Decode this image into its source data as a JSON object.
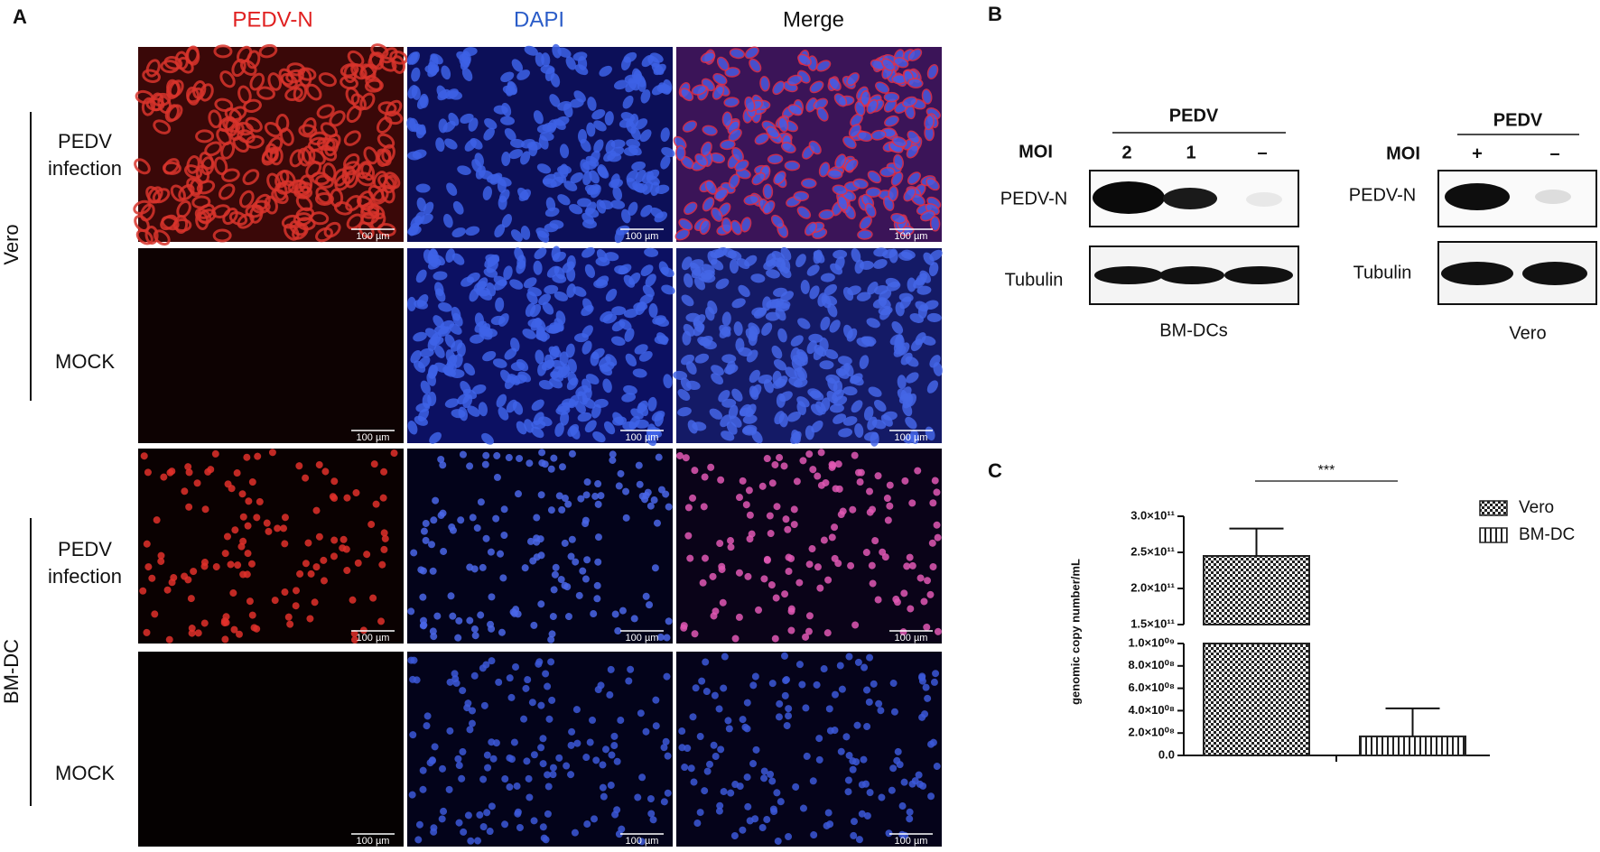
{
  "panel_a": {
    "label": "A",
    "columns": [
      "PEDV-N",
      "DAPI",
      "Merge"
    ],
    "groups": [
      {
        "name": "Vero",
        "rows": [
          [
            "PEDV",
            "infection"
          ],
          [
            "MOCK"
          ]
        ]
      },
      {
        "name": "BM-DC",
        "rows": [
          [
            "PEDV",
            "infection"
          ],
          [
            "MOCK"
          ]
        ]
      }
    ],
    "scale_bar": "100 µm"
  },
  "panel_b": {
    "label": "B",
    "blots": [
      {
        "header": "PEDV",
        "moi_label": "MOI",
        "lanes": [
          "2",
          "1",
          "–"
        ],
        "bands": [
          "PEDV-N",
          "Tubulin"
        ],
        "caption": "BM-DCs"
      },
      {
        "header": "PEDV",
        "moi_label": "MOI",
        "lanes": [
          "+",
          "–"
        ],
        "bands": [
          "PEDV-N",
          "Tubulin"
        ],
        "caption": "Vero"
      }
    ]
  },
  "panel_c": {
    "label": "C"
  },
  "chart_data": {
    "type": "bar",
    "y_label": "genomic copy number/mL",
    "significance": "***",
    "series": [
      {
        "name": "Vero",
        "values": [
          245000000000.0
        ],
        "errors": [
          38000000000.0
        ],
        "pattern": "checker",
        "color": "#222222"
      },
      {
        "name": "BM-DC",
        "values": [
          170000000.0
        ],
        "errors": [
          250000000.0
        ],
        "pattern": "vertical",
        "color": "#222222"
      }
    ],
    "segments": [
      {
        "ylim": [
          0,
          1000000000.0
        ],
        "yticks": [
          {
            "value": 0,
            "label": "0.0"
          },
          {
            "value": 200000000.0,
            "label": "2.0×10⁰⁸"
          },
          {
            "value": 400000000.0,
            "label": "4.0×10⁰⁸"
          },
          {
            "value": 600000000.0,
            "label": "6.0×10⁰⁸"
          },
          {
            "value": 800000000.0,
            "label": "8.0×10⁰⁸"
          },
          {
            "value": 1000000000.0,
            "label": "1.0×10⁰⁹"
          }
        ]
      },
      {
        "ylim": [
          150000000000.0,
          300000000000.0
        ],
        "yticks": [
          {
            "value": 150000000000.0,
            "label": "1.5×10¹¹"
          },
          {
            "value": 200000000000.0,
            "label": "2.0×10¹¹"
          },
          {
            "value": 250000000000.0,
            "label": "2.5×10¹¹"
          },
          {
            "value": 300000000000.0,
            "label": "3.0×10¹¹"
          }
        ]
      }
    ],
    "legend": "upper right"
  }
}
